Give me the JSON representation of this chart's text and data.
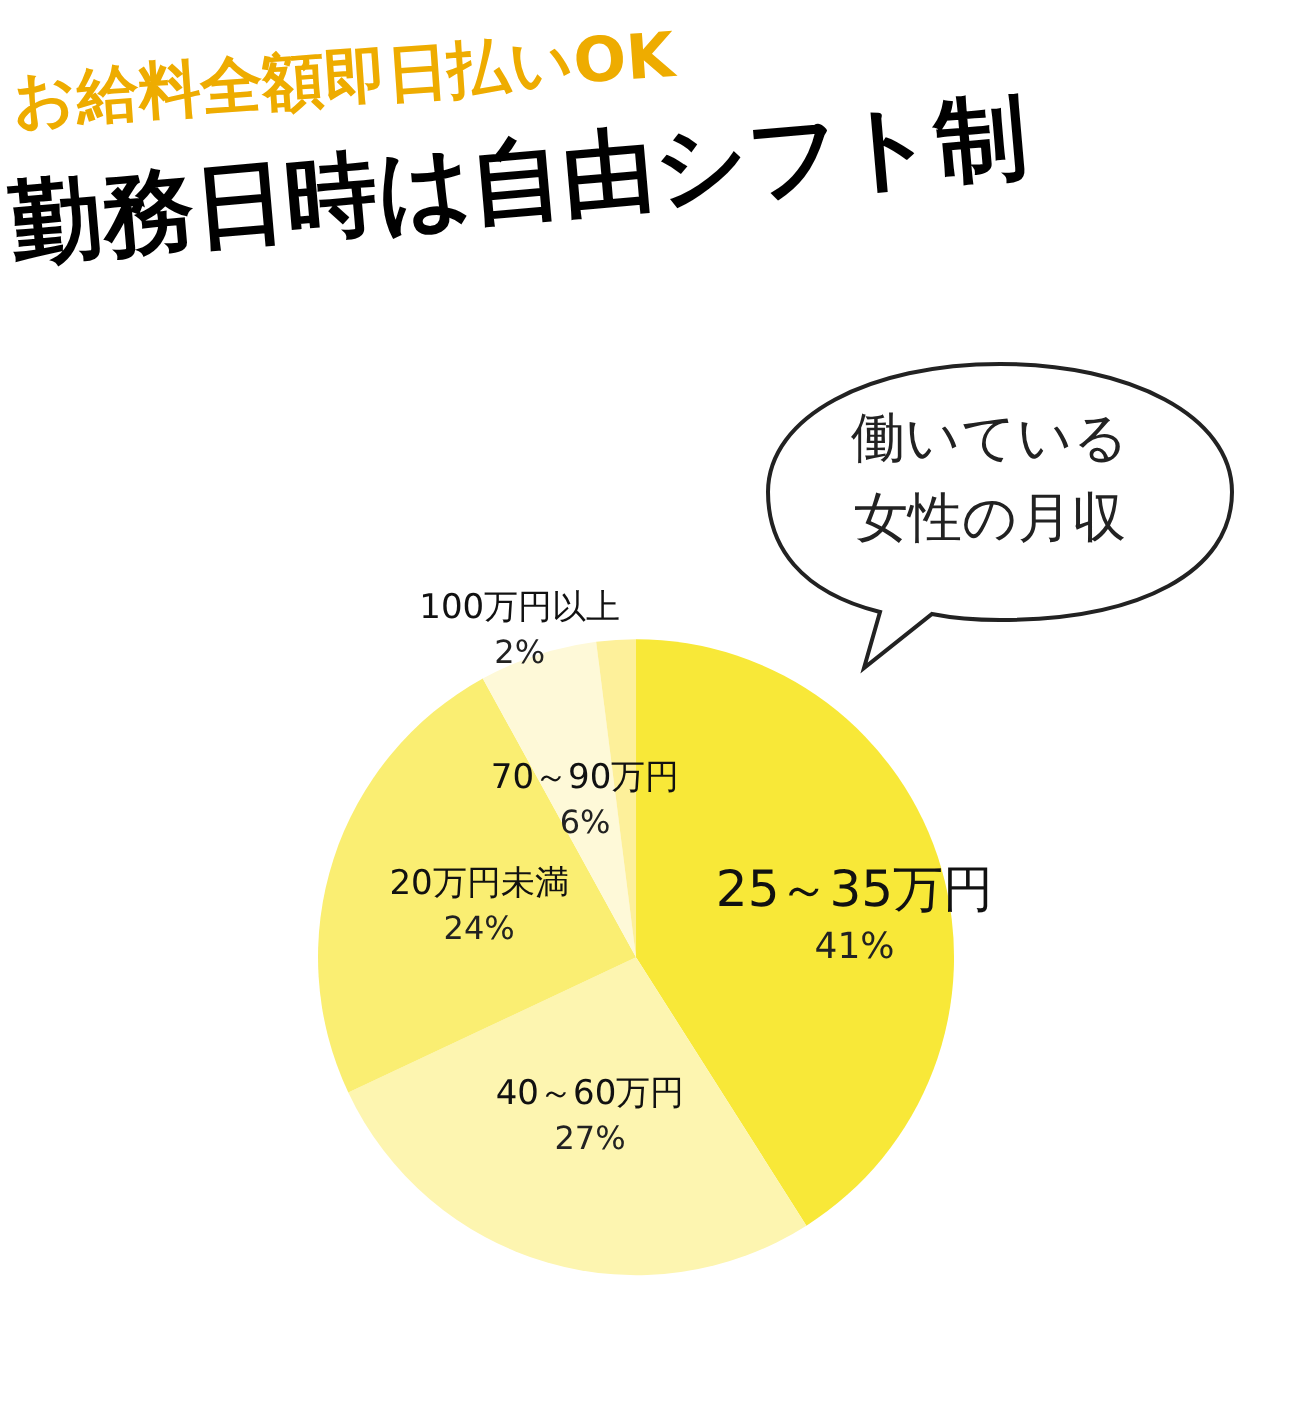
{
  "chart_data": {
    "type": "pie",
    "title": "お給料全額即日払いOK",
    "subtitle": "勤務日時は自由シフト制",
    "annotations": [
      "働いている女性の月収"
    ],
    "categories": [
      "25～35万円",
      "40～60万円",
      "20万円未満",
      "70～90万円",
      "100万円以上"
    ],
    "values": [
      41,
      27,
      24,
      6,
      2
    ],
    "value_labels": [
      "41%",
      "27%",
      "24%",
      "6%",
      "2%"
    ],
    "colors": [
      "#f8e838",
      "#fdf5b0",
      "#faee72",
      "#fef9d8",
      "#fdf09a"
    ],
    "legend": false
  }
}
